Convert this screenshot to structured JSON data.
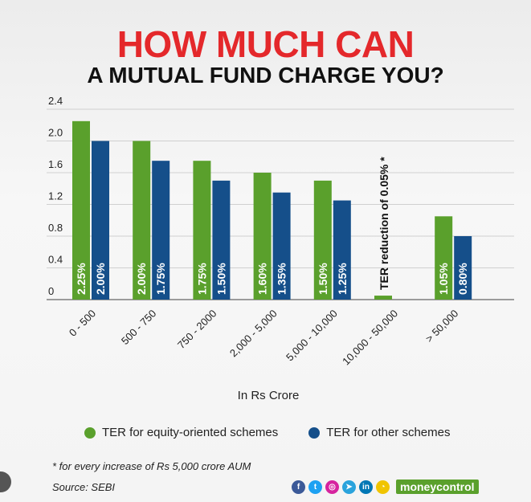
{
  "title_line1": "HOW MUCH CAN",
  "title_line2": "A MUTUAL FUND CHARGE YOU?",
  "chart_data": {
    "type": "bar",
    "categories": [
      "0 - 500",
      "500 - 750",
      "750 - 2000",
      "2,000 - 5,000",
      "5,000 - 10,000",
      "10,000 - 50,000",
      "> 50,000"
    ],
    "series": [
      {
        "name": "TER for equity-oriented schemes",
        "values": [
          2.25,
          2.0,
          1.75,
          1.6,
          1.5,
          0.05,
          1.05
        ],
        "labels": [
          "2.25%",
          "2.00%",
          "1.75%",
          "1.60%",
          "1.50%",
          "",
          "1.05%"
        ],
        "color": "#5aa02c"
      },
      {
        "name": "TER for other schemes",
        "values": [
          2.0,
          1.75,
          1.5,
          1.35,
          1.25,
          0,
          0.8
        ],
        "labels": [
          "2.00%",
          "1.75%",
          "1.50%",
          "1.35%",
          "1.25%",
          "",
          "0.80%"
        ],
        "color": "#154f8a"
      }
    ],
    "yticks": [
      "0",
      "0.4",
      "0.8",
      "1.2",
      "1.6",
      "2.0",
      "2.4"
    ],
    "ylim": [
      0,
      2.4
    ],
    "xlabel": "In Rs Crore",
    "annotation": "TER reduction of 0.05% *",
    "grid": true
  },
  "footnote": "* for every increase of Rs 5,000 crore AUM",
  "source": "Source: SEBI",
  "brand": "moneycontrol",
  "social_icons": [
    {
      "name": "facebook-icon",
      "color": "#3b5998",
      "glyph": "f"
    },
    {
      "name": "twitter-icon",
      "color": "#1da1f2",
      "glyph": "t"
    },
    {
      "name": "instagram-icon",
      "color": "#d6249f",
      "glyph": "◎"
    },
    {
      "name": "telegram-icon",
      "color": "#2aa3dc",
      "glyph": "➤"
    },
    {
      "name": "linkedin-icon",
      "color": "#0077b5",
      "glyph": "in"
    },
    {
      "name": "snapchat-icon",
      "color": "#f0c400",
      "glyph": "◔"
    }
  ]
}
